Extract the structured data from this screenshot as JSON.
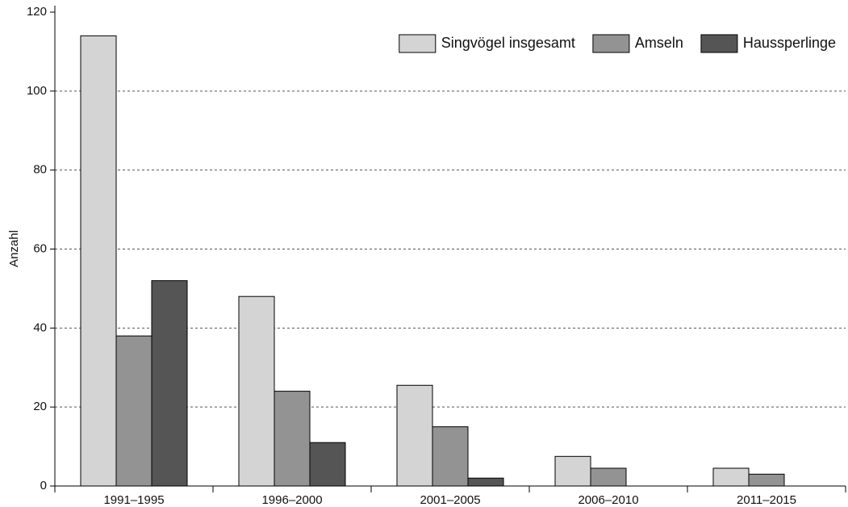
{
  "chart_data": {
    "type": "bar",
    "y_label": "Anzahl",
    "categories": [
      "1991–1995",
      "1996–2000",
      "2001–2005",
      "2006–2010",
      "2011–2015"
    ],
    "series": [
      {
        "name": "Singvögel insgesamt",
        "color": "#d4d4d4",
        "values": [
          114,
          48,
          25.5,
          7.5,
          4.5
        ]
      },
      {
        "name": "Amseln",
        "color": "#939393",
        "values": [
          38,
          24,
          15,
          4.5,
          3
        ]
      },
      {
        "name": "Haussperlinge",
        "color": "#555555",
        "values": [
          52,
          11,
          2,
          0,
          0
        ]
      }
    ],
    "ylim": [
      0,
      120
    ],
    "yticks": [
      0,
      20,
      40,
      60,
      80,
      100,
      120
    ],
    "grid": true,
    "legend": "top-right"
  }
}
